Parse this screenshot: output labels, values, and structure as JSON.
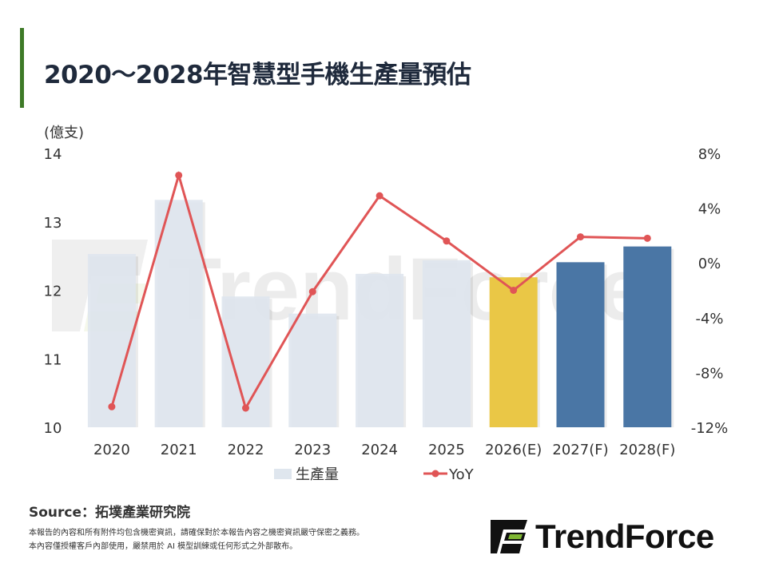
{
  "title": "2020～2028年智慧型手機生產量預估",
  "chart_data": {
    "type": "bar+line",
    "categories": [
      "2020",
      "2021",
      "2022",
      "2023",
      "2024",
      "2025",
      "2026(E)",
      "2027(F)",
      "2028(F)"
    ],
    "series": [
      {
        "name": "生產量",
        "type": "bar",
        "axis": "left",
        "values": [
          12.53,
          13.32,
          11.91,
          11.66,
          12.24,
          12.44,
          12.19,
          12.41,
          12.64
        ],
        "colors": [
          "#dfe6ee",
          "#dfe6ee",
          "#dfe6ee",
          "#dfe6ee",
          "#dfe6ee",
          "#dfe6ee",
          "#eac746",
          "#4a76a5",
          "#4a76a5"
        ]
      },
      {
        "name": "YoY",
        "type": "line",
        "axis": "right",
        "unit": "%",
        "values": [
          -10.5,
          6.4,
          -10.6,
          -2.1,
          4.9,
          1.6,
          -2.0,
          1.9,
          1.8
        ],
        "color": "#e05556"
      }
    ],
    "left_axis": {
      "label": "(億支)",
      "range": [
        10,
        14
      ],
      "ticks": [
        "10",
        "11",
        "12",
        "13",
        "14"
      ]
    },
    "right_axis": {
      "range": [
        -12,
        8
      ],
      "ticks": [
        "-12%",
        "-8%",
        "-4%",
        "0%",
        "4%",
        "8%"
      ]
    },
    "legend_position": "bottom",
    "grid": false
  },
  "source": "Source：拓墣產業研究院",
  "disclaimer": [
    "本報告的內容和所有附件均包含機密資訊，請確保對於本報告內容之機密資訊嚴守保密之義務。",
    "本內容僅授權客戶內部使用，嚴禁用於 AI 模型訓練或任何形式之外部散布。"
  ],
  "logo_text": "TrendForce",
  "watermark_text": "TrendForce"
}
